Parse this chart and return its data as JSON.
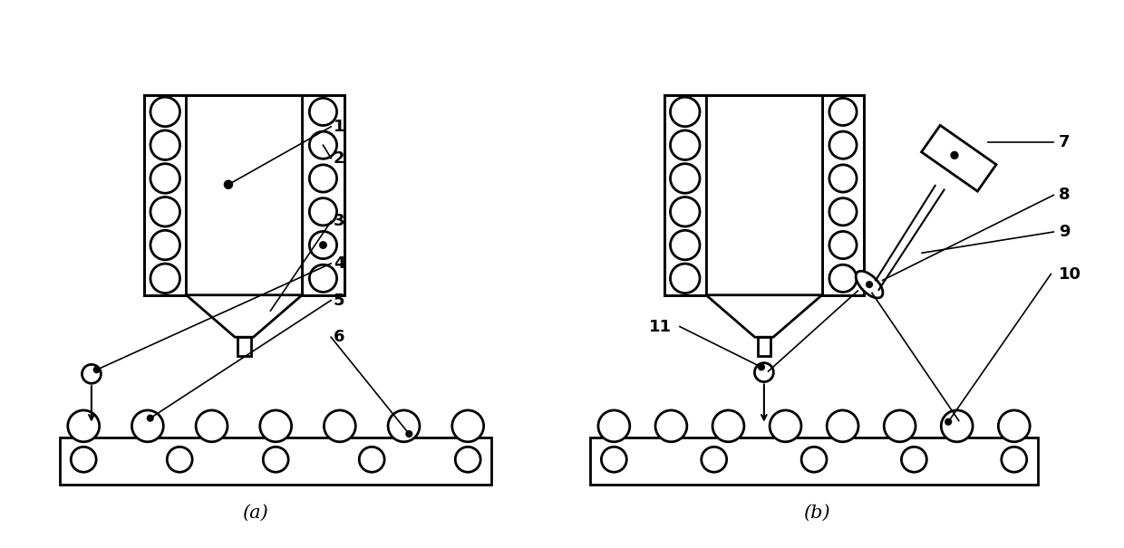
{
  "bg_color": "#ffffff",
  "line_color": "#000000",
  "fig_width": 12.4,
  "fig_height": 6.05,
  "label_a": "(a)",
  "label_b": "(b)"
}
